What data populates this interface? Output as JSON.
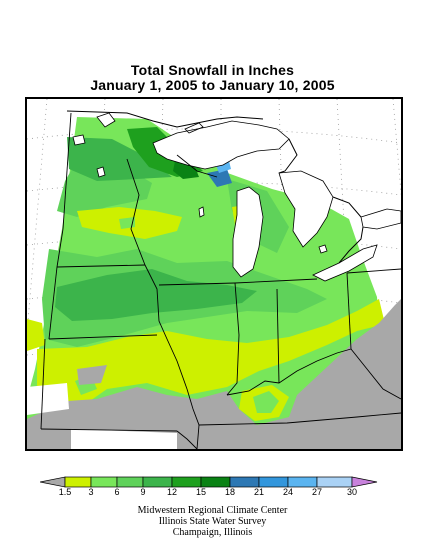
{
  "title": {
    "line1": "Total Snowfall in Inches",
    "line2": "January 1, 2005 to January 10, 2005"
  },
  "legend": {
    "ticks": [
      "1.5",
      "3",
      "6",
      "9",
      "12",
      "15",
      "18",
      "21",
      "24",
      "27",
      "30"
    ],
    "colors": {
      "below": "#a8a8a8",
      "c1_5_3": "#cdf000",
      "c3_6": "#78e65a",
      "c6_9": "#5fd25a",
      "c9_12": "#3cb44b",
      "c12_15": "#1ea01e",
      "c15_18": "#0a8214",
      "c18_21": "#2d78b4",
      "c21_24": "#3296dc",
      "c24_27": "#5ab4f0",
      "c27_30": "#aad2f5",
      "above": "#c882dc"
    }
  },
  "credits": {
    "line1": "Midwestern Regional Climate Center",
    "line2": "Illinois State Water Survey",
    "line3": "Champaign, Illinois"
  }
}
